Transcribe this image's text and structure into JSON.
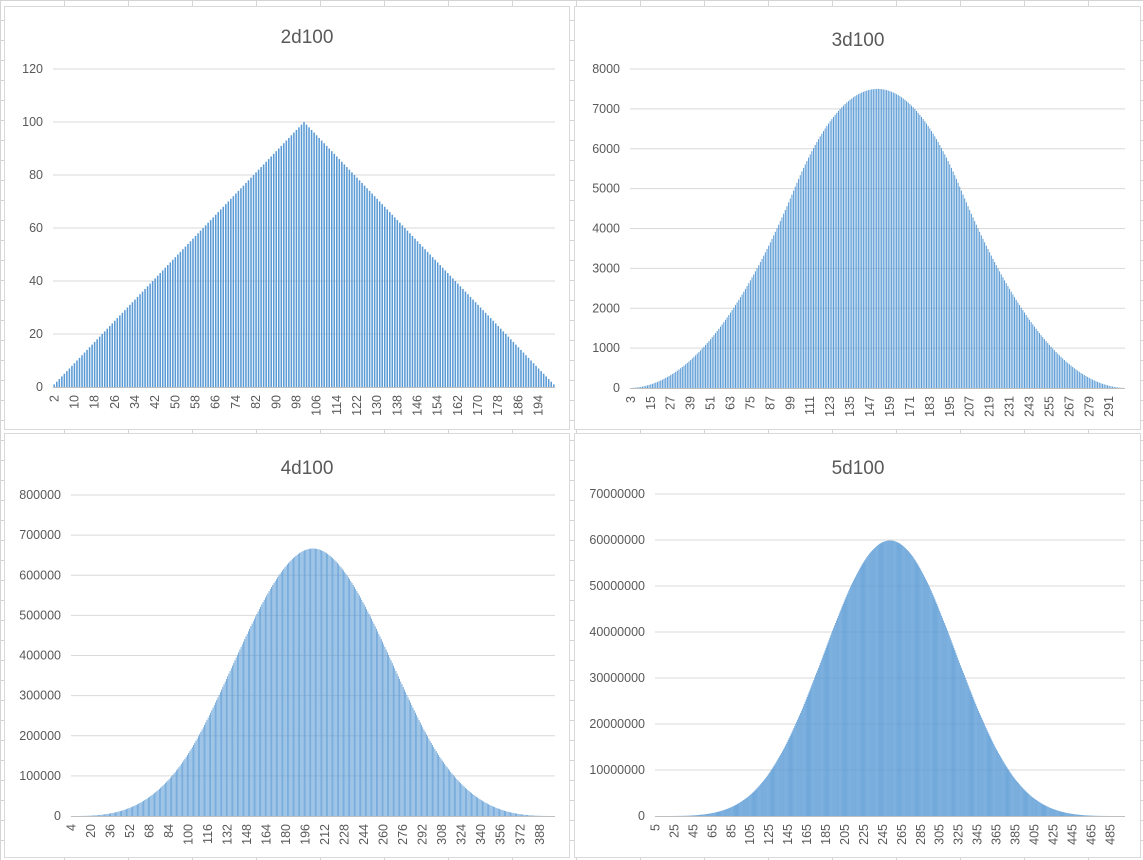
{
  "chart_data": [
    {
      "type": "bar",
      "title": "2d100",
      "dice": 2,
      "sides": 100,
      "x_range": [
        2,
        200
      ],
      "x_tick_start": 2,
      "x_tick_step": 8,
      "ylim": [
        0,
        120
      ],
      "y_ticks": [
        "0",
        "20",
        "40",
        "60",
        "80",
        "100",
        "120"
      ],
      "x_tick_labels": [
        "2",
        "10",
        "18",
        "26",
        "34",
        "42",
        "50",
        "58",
        "66",
        "74",
        "82",
        "90",
        "98",
        "106",
        "114",
        "122",
        "130",
        "138",
        "146",
        "154",
        "162",
        "170",
        "178",
        "186",
        "194"
      ],
      "peak": {
        "x": 101,
        "y": 100
      },
      "bar_color": "#5b9bd5",
      "grid": true,
      "legend": "none"
    },
    {
      "type": "bar",
      "title": "3d100",
      "dice": 3,
      "sides": 100,
      "x_range": [
        3,
        300
      ],
      "x_tick_start": 3,
      "x_tick_step": 12,
      "ylim": [
        0,
        8000
      ],
      "y_ticks": [
        "0",
        "1000",
        "2000",
        "3000",
        "4000",
        "5000",
        "6000",
        "7000",
        "8000"
      ],
      "x_tick_labels": [
        "3",
        "15",
        "27",
        "39",
        "51",
        "63",
        "75",
        "87",
        "99",
        "111",
        "123",
        "135",
        "147",
        "159",
        "171",
        "183",
        "195",
        "207",
        "219",
        "231",
        "243",
        "255",
        "267",
        "279",
        "291"
      ],
      "peak": {
        "x": 151,
        "y": 7500
      },
      "bar_color": "#5b9bd5",
      "grid": true,
      "legend": "none"
    },
    {
      "type": "bar",
      "title": "4d100",
      "dice": 4,
      "sides": 100,
      "x_range": [
        4,
        400
      ],
      "x_tick_start": 4,
      "x_tick_step": 16,
      "ylim": [
        0,
        800000
      ],
      "y_ticks": [
        "0",
        "100000",
        "200000",
        "300000",
        "400000",
        "500000",
        "600000",
        "700000",
        "800000"
      ],
      "x_tick_labels": [
        "4",
        "20",
        "36",
        "52",
        "68",
        "84",
        "100",
        "116",
        "132",
        "148",
        "164",
        "180",
        "196",
        "212",
        "228",
        "244",
        "260",
        "276",
        "292",
        "308",
        "324",
        "340",
        "356",
        "372",
        "388"
      ],
      "peak": {
        "x": 202,
        "y": 666700
      },
      "bar_color": "#5b9bd5",
      "grid": true,
      "legend": "none"
    },
    {
      "type": "bar",
      "title": "5d100",
      "dice": 5,
      "sides": 100,
      "x_range": [
        5,
        500
      ],
      "x_tick_start": 5,
      "x_tick_step": 20,
      "ylim": [
        0,
        70000000
      ],
      "y_ticks": [
        "0",
        "10000000",
        "20000000",
        "30000000",
        "40000000",
        "50000000",
        "60000000",
        "70000000"
      ],
      "x_tick_labels": [
        "5",
        "25",
        "45",
        "65",
        "85",
        "105",
        "125",
        "145",
        "165",
        "185",
        "205",
        "225",
        "245",
        "265",
        "285",
        "305",
        "325",
        "345",
        "365",
        "385",
        "405",
        "425",
        "445",
        "465",
        "485"
      ],
      "peak": {
        "x": 252,
        "y": 59900000
      },
      "bar_color": "#5b9bd5",
      "grid": true,
      "legend": "none"
    }
  ]
}
